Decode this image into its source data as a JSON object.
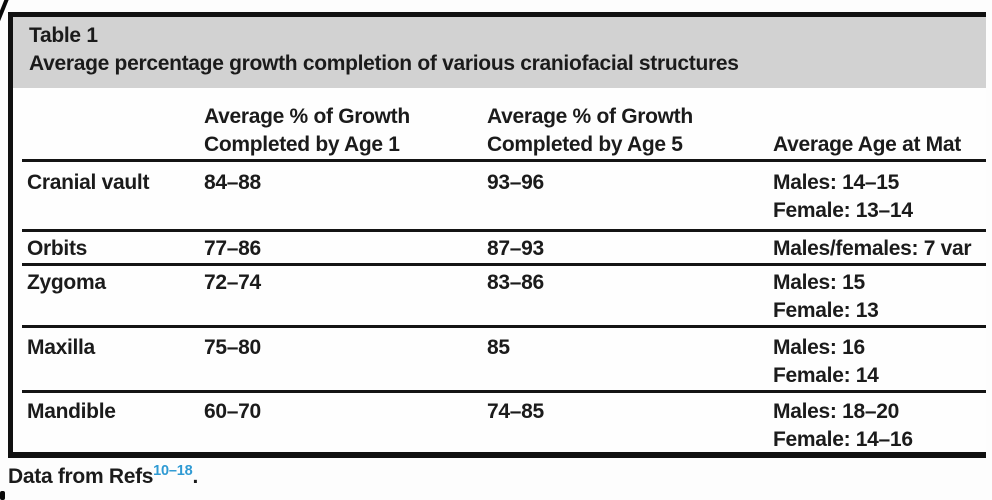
{
  "colors": {
    "header_band": "#d2d2d2",
    "rule": "#141414",
    "text": "#1b1b1b",
    "ref_superscript": "#2f9ad3",
    "page_bg": "#fdfdfd"
  },
  "table": {
    "label": "Table 1",
    "title": "Average percentage growth completion of various craniofacial structures",
    "columns": {
      "age1_line1": "Average % of Growth",
      "age1_line2": "Completed by Age 1",
      "age5_line1": "Average % of Growth",
      "age5_line2": "Completed by Age 5",
      "maturity": "Average Age at Mat"
    },
    "rows": [
      {
        "structure": "Cranial vault",
        "age1": "84–88",
        "age5": "93–96",
        "maturity": [
          "Males: 14–15",
          "Female: 13–14"
        ]
      },
      {
        "structure": "Orbits",
        "age1": "77–86",
        "age5": "87–93",
        "maturity": [
          "Males/females: 7 var"
        ]
      },
      {
        "structure": "Zygoma",
        "age1": "72–74",
        "age5": "83–86",
        "maturity": [
          "Males: 15",
          "Female: 13"
        ]
      },
      {
        "structure": "Maxilla",
        "age1": "75–80",
        "age5": "85",
        "maturity": [
          "Males: 16",
          "Female: 14"
        ]
      },
      {
        "structure": "Mandible",
        "age1": "60–70",
        "age5": "74–85",
        "maturity": [
          "Males: 18–20",
          "Female: 14–16"
        ]
      }
    ]
  },
  "footnote": {
    "prefix": "Data from Refs",
    "refs": "10–18",
    "suffix": "."
  }
}
